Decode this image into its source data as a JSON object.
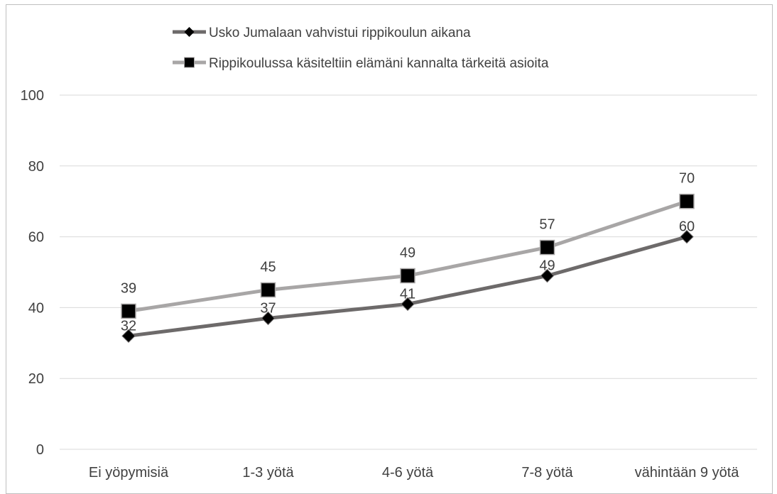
{
  "chart_data": {
    "type": "line",
    "categories": [
      "Ei yöpymisiä",
      "1-3 yötä",
      "4-6 yötä",
      "7-8 yötä",
      "vähintään 9 yötä"
    ],
    "series": [
      {
        "name": "Usko Jumalaan vahvistui rippikoulun aikana",
        "values": [
          32,
          37,
          41,
          49,
          60
        ],
        "color": "#6d6a6a",
        "marker": "diamond"
      },
      {
        "name": "Rippikoulussa käsiteltiin elämäni kannalta tärkeitä asioita",
        "values": [
          39,
          45,
          49,
          57,
          70
        ],
        "color": "#a8a6a6",
        "marker": "square"
      }
    ],
    "yticks": [
      "0",
      "20",
      "40",
      "60",
      "80",
      "100"
    ],
    "ylim": [
      0,
      100
    ],
    "grid": true,
    "legend": "top",
    "data_labels": true
  }
}
